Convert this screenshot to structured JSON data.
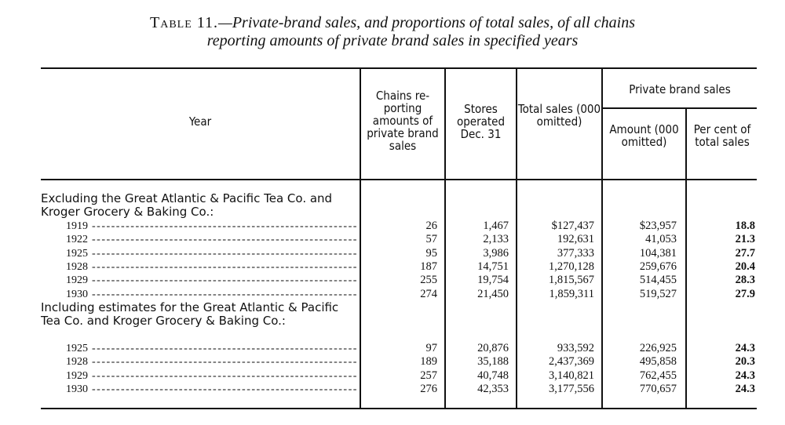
{
  "title": {
    "lead": "Table 11.",
    "text": "—Private-brand sales, and proportions of total sales, of all chains",
    "text2": "reporting amounts of private brand sales in specified years"
  },
  "headers": {
    "year": "Year",
    "chains": "Chains re-porting amounts of private brand sales",
    "stores": "Stores operated Dec. 31",
    "total": "Total sales (000 omitted)",
    "private_group": "Private brand sales",
    "amount": "Amount (000 omitted)",
    "percent": "Per cent of total sales"
  },
  "sections": [
    {
      "label": "Excluding the Great Atlantic & Pacific Tea Co. and Kroger Grocery & Baking Co.:",
      "rows": [
        {
          "year": "1919",
          "chains": "26",
          "stores": "1,467",
          "total": "$127,437",
          "amount": "$23,957",
          "percent": "18.8"
        },
        {
          "year": "1922",
          "chains": "57",
          "stores": "2,133",
          "total": "192,631",
          "amount": "41,053",
          "percent": "21.3"
        },
        {
          "year": "1925",
          "chains": "95",
          "stores": "3,986",
          "total": "377,333",
          "amount": "104,381",
          "percent": "27.7"
        },
        {
          "year": "1928",
          "chains": "187",
          "stores": "14,751",
          "total": "1,270,128",
          "amount": "259,676",
          "percent": "20.4"
        },
        {
          "year": "1929",
          "chains": "255",
          "stores": "19,754",
          "total": "1,815,567",
          "amount": "514,455",
          "percent": "28.3"
        },
        {
          "year": "1930",
          "chains": "274",
          "stores": "21,450",
          "total": "1,859,311",
          "amount": "519,527",
          "percent": "27.9"
        }
      ]
    },
    {
      "label": "Including estimates for the Great Atlantic & Pacific Tea Co. and Kroger Grocery & Baking Co.:",
      "rows": [
        {
          "year": "1925",
          "chains": "97",
          "stores": "20,876",
          "total": "933,592",
          "amount": "226,925",
          "percent": "24.3"
        },
        {
          "year": "1928",
          "chains": "189",
          "stores": "35,188",
          "total": "2,437,369",
          "amount": "495,858",
          "percent": "20.3"
        },
        {
          "year": "1929",
          "chains": "257",
          "stores": "40,748",
          "total": "3,140,821",
          "amount": "762,455",
          "percent": "24.3"
        },
        {
          "year": "1930",
          "chains": "276",
          "stores": "42,353",
          "total": "3,177,556",
          "amount": "770,657",
          "percent": "24.3"
        }
      ]
    }
  ]
}
